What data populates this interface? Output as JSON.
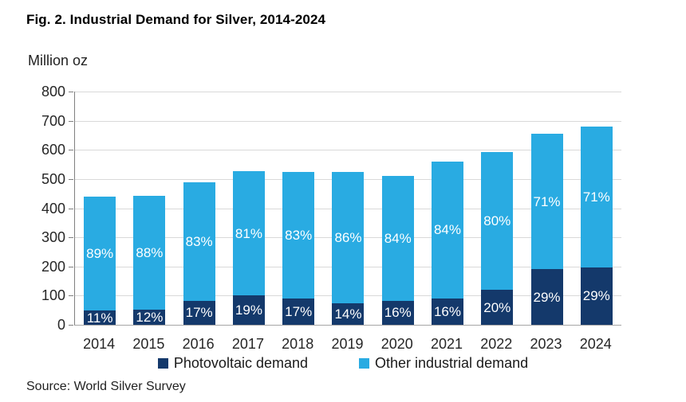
{
  "title": "Fig. 2. Industrial Demand for Silver, 2014-2024",
  "y_axis_header": "Million oz",
  "source": "Source: World Silver Survey",
  "colors": {
    "photovoltaic": "#14396B",
    "other_industrial": "#29ABE2",
    "gridline": "#D9D9D9",
    "y_axis_line": "#808080",
    "x_axis_line": "#A6A6A6",
    "bar_label_text": "#FFFFFF"
  },
  "chart_data": {
    "type": "bar",
    "stacked": true,
    "title": "Fig. 2. Industrial Demand for Silver, 2014-2024",
    "xlabel": "",
    "ylabel": "Million oz",
    "ylim": [
      0,
      800
    ],
    "ytick_interval": 100,
    "grid": true,
    "legend_position": "bottom",
    "categories": [
      "2014",
      "2015",
      "2016",
      "2017",
      "2018",
      "2019",
      "2020",
      "2021",
      "2022",
      "2023",
      "2024"
    ],
    "series": [
      {
        "name": "Photovoltaic demand",
        "color": "#14396B",
        "values": [
          48,
          53,
          83,
          100,
          89,
          73,
          82,
          90,
          119,
          190,
          197
        ],
        "labels": [
          "11%",
          "12%",
          "17%",
          "19%",
          "17%",
          "14%",
          "16%",
          "16%",
          "20%",
          "29%",
          "29%"
        ]
      },
      {
        "name": "Other industrial demand",
        "color": "#29ABE2",
        "values": [
          392,
          390,
          407,
          427,
          436,
          450,
          428,
          471,
          474,
          464,
          483
        ],
        "labels": [
          "89%",
          "88%",
          "83%",
          "81%",
          "83%",
          "86%",
          "84%",
          "84%",
          "80%",
          "71%",
          "71%"
        ]
      }
    ],
    "totals": [
      440,
      443,
      490,
      527,
      525,
      523,
      510,
      561,
      593,
      654,
      680
    ]
  }
}
